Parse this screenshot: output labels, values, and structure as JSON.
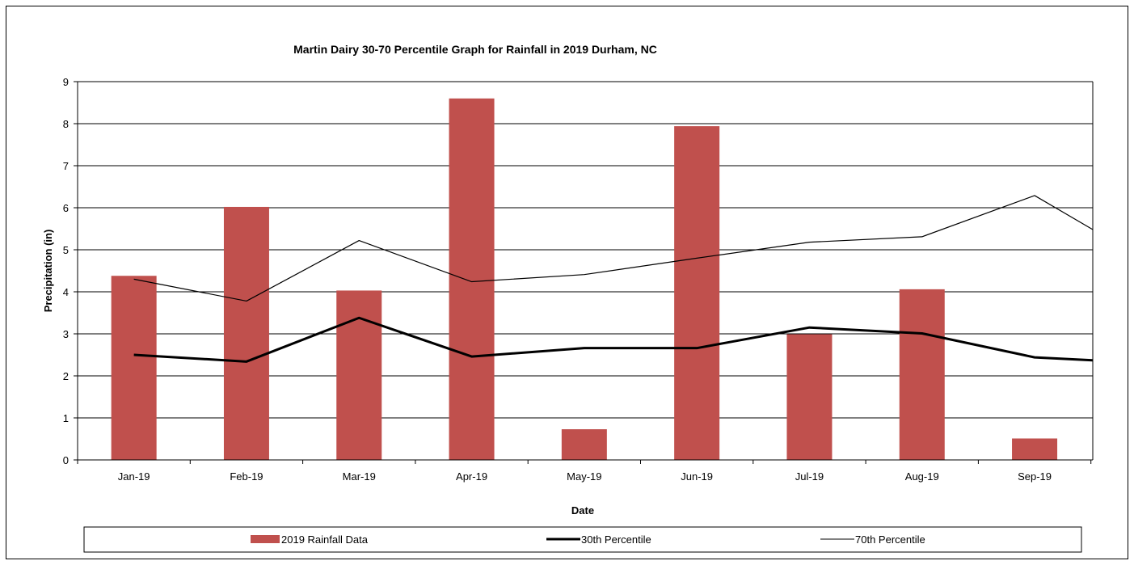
{
  "chart_data": {
    "type": "bar",
    "title": "Martin Dairy 30-70 Percentile Graph for Rainfall in 2019 Durham, NC",
    "xlabel": "Date",
    "ylabel": "Precipitation (in)",
    "ylim": [
      0,
      9
    ],
    "yticks": [
      0,
      1,
      2,
      3,
      4,
      5,
      6,
      7,
      8,
      9
    ],
    "grid": true,
    "legend_position": "bottom",
    "categories": [
      "Jan-19",
      "Feb-19",
      "Mar-19",
      "Apr-19",
      "May-19",
      "Jun-19",
      "Jul-19",
      "Aug-19",
      "Sep-19"
    ],
    "series": [
      {
        "name": "2019 Rainfall Data",
        "kind": "bar",
        "color": "#c0504d",
        "values": [
          4.38,
          6.02,
          4.03,
          8.6,
          0.73,
          7.94,
          2.99,
          4.06,
          0.51
        ]
      },
      {
        "name": "30th Percentile",
        "kind": "line",
        "color": "#000000",
        "line_weight": "thick",
        "values": [
          2.5,
          2.34,
          3.38,
          2.46,
          2.66,
          2.66,
          3.15,
          3.01,
          2.44
        ],
        "continues_to": 2.37
      },
      {
        "name": "70th Percentile",
        "kind": "line",
        "color": "#000000",
        "line_weight": "thin",
        "values": [
          4.3,
          3.78,
          5.22,
          4.24,
          4.41,
          4.8,
          5.18,
          5.31,
          6.29
        ],
        "continues_to": 5.48
      }
    ]
  }
}
